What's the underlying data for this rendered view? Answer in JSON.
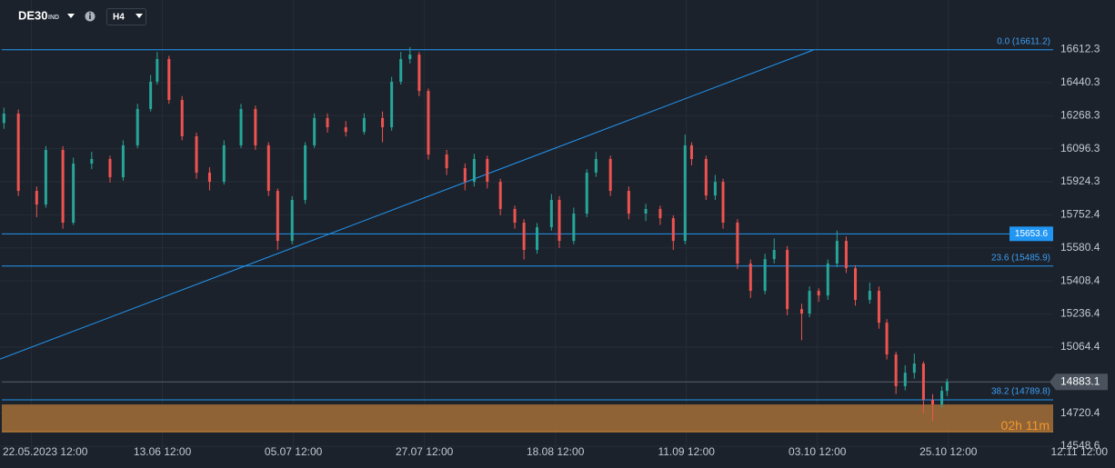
{
  "toolbar": {
    "symbol": "DE30",
    "symbol_type": "IND",
    "timeframe": "H4"
  },
  "chart_data": {
    "type": "candlestick",
    "colors": {
      "up": "#26a69a",
      "down": "#ef5350",
      "level": "#2196f3",
      "zone": "#9c6a36",
      "timer": "#f0972f"
    },
    "grid": true,
    "xlim": [
      -0.24,
      7.8
    ],
    "ylim": [
      14530,
      16870
    ],
    "xticks": [
      {
        "value": 0,
        "label": "22.05.2023 12:00"
      },
      {
        "value": 1,
        "label": "13.06 12:00"
      },
      {
        "value": 2,
        "label": "05.07 12:00"
      },
      {
        "value": 3,
        "label": "27.07 12:00"
      },
      {
        "value": 4,
        "label": "18.08 12:00"
      },
      {
        "value": 5,
        "label": "11.09 12:00"
      },
      {
        "value": 6,
        "label": "03.10 12:00"
      },
      {
        "value": 7,
        "label": "25.10 12:00"
      },
      {
        "value": 8,
        "label": "12.11 12:00"
      }
    ],
    "yticks": [
      16612.3,
      16440.3,
      16268.3,
      16096.3,
      15924.3,
      15752.4,
      15580.4,
      15408.4,
      15236.4,
      15064.4,
      14720.4,
      14548.6
    ],
    "x": [
      -0.21,
      -0.1,
      0.04,
      0.11,
      0.24,
      0.32,
      0.46,
      0.6,
      0.7,
      0.81,
      0.91,
      0.96,
      1.05,
      1.15,
      1.26,
      1.36,
      1.47,
      1.6,
      1.71,
      1.81,
      1.88,
      1.99,
      2.09,
      2.16,
      2.26,
      2.4,
      2.54,
      2.68,
      2.75,
      2.82,
      2.89,
      2.96,
      3.03,
      3.17,
      3.31,
      3.38,
      3.48,
      3.58,
      3.69,
      3.76,
      3.86,
      3.97,
      4.03,
      4.14,
      4.24,
      4.31,
      4.42,
      4.56,
      4.69,
      4.8,
      4.9,
      4.99,
      5.04,
      5.15,
      5.22,
      5.28,
      5.39,
      5.49,
      5.6,
      5.67,
      5.77,
      5.88,
      5.94,
      6.01,
      6.08,
      6.15,
      6.22,
      6.29,
      6.4,
      6.47,
      6.53,
      6.6,
      6.67,
      6.74,
      6.81,
      6.88,
      6.95,
      6.99
    ],
    "open": [
      16230,
      16279,
      15877,
      15806,
      16090,
      15712,
      16019,
      16043,
      15948,
      16114,
      16303,
      16445,
      16563,
      16350,
      16161,
      15972,
      15924,
      16114,
      16303,
      16114,
      15877,
      15617,
      15830,
      16114,
      16256,
      16208,
      16184,
      16256,
      16208,
      16445,
      16563,
      16586,
      16397,
      16066,
      15995,
      15924,
      16043,
      15924,
      15783,
      15712,
      15570,
      15688,
      15830,
      15617,
      15759,
      15972,
      16043,
      15877,
      15759,
      15783,
      15735,
      15617,
      16114,
      16043,
      15853,
      15924,
      15712,
      15499,
      15357,
      15522,
      15570,
      15262,
      15239,
      15357,
      15333,
      15499,
      15617,
      15475,
      15310,
      15357,
      15191,
      15026,
      14861,
      14931,
      14979,
      14790,
      14766,
      14837
    ],
    "high": [
      16310,
      16300,
      15900,
      16110,
      16110,
      16050,
      16080,
      16060,
      16140,
      16330,
      16480,
      16600,
      16580,
      16370,
      16180,
      16000,
      16140,
      16330,
      16320,
      16130,
      15890,
      15850,
      16130,
      16280,
      16280,
      16240,
      16280,
      16290,
      16470,
      16600,
      16625,
      16600,
      16410,
      16090,
      16020,
      16070,
      16060,
      15940,
      15800,
      15730,
      15710,
      15860,
      15850,
      15790,
      15990,
      16080,
      16060,
      15900,
      15810,
      15800,
      15750,
      16170,
      16130,
      16060,
      15960,
      15940,
      15730,
      15520,
      15550,
      15630,
      15590,
      15290,
      15380,
      15370,
      15520,
      15670,
      15640,
      15490,
      15400,
      15380,
      15210,
      15040,
      14970,
      15030,
      14990,
      14820,
      14860,
      14900
    ],
    "low": [
      16200,
      15850,
      15740,
      15790,
      15680,
      15700,
      15990,
      15920,
      15930,
      16100,
      16290,
      16430,
      16330,
      16140,
      15940,
      15880,
      15910,
      16100,
      16090,
      15850,
      15570,
      15600,
      15810,
      16100,
      16180,
      16160,
      16170,
      16130,
      16190,
      16430,
      16540,
      16370,
      16040,
      15960,
      15880,
      15900,
      15890,
      15750,
      15680,
      15520,
      15550,
      15670,
      15580,
      15600,
      15740,
      15950,
      15850,
      15730,
      15720,
      15700,
      15570,
      15600,
      16010,
      15830,
      15830,
      15680,
      15470,
      15320,
      15340,
      15500,
      15230,
      15100,
      15220,
      15300,
      15310,
      15480,
      15450,
      15280,
      15290,
      15160,
      15000,
      14820,
      14840,
      14900,
      14720,
      14680,
      14750,
      14810
    ],
    "close": [
      16279,
      15877,
      15806,
      16090,
      15712,
      16019,
      16043,
      15948,
      16114,
      16303,
      16445,
      16563,
      16350,
      16161,
      15972,
      15924,
      16114,
      16303,
      16114,
      15877,
      15617,
      15830,
      16114,
      16256,
      16208,
      16184,
      16256,
      16208,
      16445,
      16563,
      16586,
      16397,
      16066,
      15995,
      15924,
      16043,
      15924,
      15783,
      15712,
      15570,
      15688,
      15830,
      15617,
      15759,
      15972,
      16043,
      15877,
      15759,
      15783,
      15735,
      15617,
      16114,
      16043,
      15853,
      15924,
      15712,
      15499,
      15357,
      15522,
      15570,
      15262,
      15239,
      15357,
      15333,
      15499,
      15617,
      15475,
      15310,
      15357,
      15191,
      15026,
      14861,
      14931,
      14979,
      14790,
      14766,
      14837,
      14883.1
    ],
    "last_price": 14883.1,
    "levels": [
      {
        "value": 16611.2,
        "label": "0.0 (16611.2)"
      },
      {
        "value": 15653.6
      },
      {
        "value": 15485.9,
        "label": "23.6 (15485.9)"
      },
      {
        "value": 14789.8,
        "label": "38.2 (14789.8)"
      }
    ],
    "trendline": {
      "x": [
        -0.24,
        5.97
      ],
      "y": [
        15002,
        16610
      ]
    },
    "zone": [
      14624,
      14766
    ],
    "timer": "02h 11m"
  }
}
